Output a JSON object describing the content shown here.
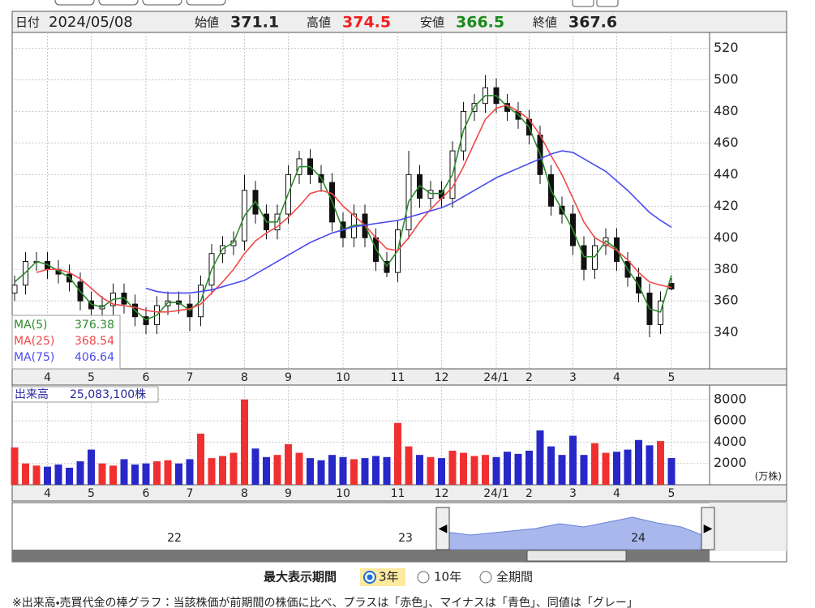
{
  "header": {
    "date_label": "日付",
    "date": "2024/05/08",
    "open_label": "始値",
    "open": 371.1,
    "high_label": "高値",
    "high": 374.5,
    "low_label": "安値",
    "low": 366.5,
    "close_label": "終値",
    "close": 367.6
  },
  "chart_data": [
    {
      "type": "candlestick",
      "categories": [
        null,
        null,
        null,
        "4",
        null,
        null,
        null,
        "5",
        null,
        null,
        null,
        null,
        "6",
        null,
        null,
        null,
        "7",
        null,
        null,
        null,
        null,
        "8",
        null,
        null,
        null,
        "9",
        null,
        null,
        null,
        null,
        "10",
        null,
        null,
        null,
        null,
        "11",
        null,
        null,
        null,
        "12",
        null,
        null,
        null,
        null,
        "24/1",
        null,
        null,
        "2",
        null,
        null,
        null,
        "3",
        null,
        null,
        null,
        "4",
        null,
        null,
        null,
        null,
        "5"
      ],
      "open": [
        365,
        370,
        385,
        385,
        380,
        377,
        372,
        360,
        355,
        357,
        365,
        358,
        350,
        345,
        357,
        360,
        358,
        350,
        370,
        390,
        395,
        398,
        430,
        415,
        405,
        415,
        440,
        450,
        440,
        435,
        410,
        400,
        415,
        400,
        385,
        378,
        405,
        440,
        425,
        430,
        425,
        455,
        480,
        485,
        495,
        485,
        480,
        475,
        465,
        440,
        420,
        415,
        395,
        380,
        395,
        400,
        385,
        375,
        365,
        345,
        371.1
      ],
      "high": [
        376,
        391,
        391,
        391,
        386,
        383,
        378,
        366,
        363,
        371,
        371,
        364,
        356,
        363,
        366,
        366,
        364,
        376,
        396,
        401,
        404,
        440,
        436,
        421,
        421,
        446,
        455,
        456,
        446,
        441,
        416,
        421,
        421,
        406,
        391,
        411,
        455,
        446,
        436,
        436,
        461,
        486,
        491,
        503,
        501,
        491,
        486,
        481,
        471,
        446,
        426,
        421,
        401,
        401,
        406,
        406,
        391,
        381,
        371,
        366,
        374.5
      ],
      "low": [
        360,
        364,
        379,
        374,
        371,
        366,
        354,
        349,
        349,
        351,
        352,
        344,
        339,
        339,
        351,
        352,
        341,
        344,
        364,
        384,
        389,
        392,
        409,
        399,
        399,
        409,
        434,
        434,
        429,
        404,
        394,
        394,
        394,
        379,
        375,
        372,
        399,
        419,
        419,
        419,
        419,
        449,
        474,
        479,
        479,
        474,
        469,
        459,
        434,
        414,
        409,
        389,
        373,
        374,
        389,
        379,
        369,
        359,
        337,
        339,
        366.5
      ],
      "close": [
        370,
        385,
        385,
        380,
        377,
        372,
        360,
        355,
        357,
        365,
        358,
        350,
        345,
        357,
        360,
        358,
        350,
        370,
        390,
        395,
        398,
        430,
        415,
        405,
        415,
        440,
        450,
        440,
        435,
        410,
        400,
        415,
        400,
        385,
        378,
        405,
        440,
        425,
        430,
        425,
        455,
        480,
        485,
        495,
        485,
        480,
        475,
        465,
        440,
        420,
        415,
        395,
        380,
        395,
        400,
        385,
        375,
        365,
        345,
        360,
        367.6
      ],
      "candle_color": "#111111",
      "series": [
        {
          "name": "MA(5)",
          "color": "#2e8b2e",
          "values": [
            372,
            378,
            385,
            383,
            379,
            375,
            366,
            358,
            356,
            361,
            362,
            354,
            348,
            351,
            359,
            359,
            354,
            360,
            380,
            393,
            397,
            414,
            423,
            410,
            410,
            428,
            445,
            445,
            438,
            423,
            405,
            408,
            408,
            393,
            382,
            392,
            423,
            433,
            428,
            428,
            440,
            468,
            483,
            490,
            490,
            483,
            478,
            470,
            453,
            430,
            418,
            405,
            388,
            388,
            398,
            393,
            380,
            370,
            355,
            353,
            376.38
          ]
        },
        {
          "name": "MA(25)",
          "color": "#f04848",
          "values": [
            null,
            null,
            378,
            380,
            380,
            378,
            374,
            368,
            362,
            358,
            357,
            356,
            354,
            353,
            353,
            354,
            355,
            358,
            365,
            372,
            380,
            390,
            398,
            403,
            407,
            413,
            420,
            428,
            430,
            428,
            420,
            414,
            408,
            400,
            393,
            392,
            400,
            410,
            418,
            425,
            432,
            445,
            460,
            475,
            482,
            484,
            480,
            475,
            465,
            452,
            440,
            425,
            410,
            400,
            396,
            392,
            386,
            378,
            372,
            370,
            368.54
          ]
        },
        {
          "name": "MA(75)",
          "color": "#4b4bf0",
          "values": [
            null,
            null,
            null,
            null,
            null,
            null,
            null,
            null,
            null,
            null,
            null,
            null,
            368,
            366,
            365,
            365,
            365,
            366,
            367,
            369,
            371,
            373,
            377,
            381,
            385,
            389,
            393,
            397,
            400,
            403,
            405,
            407,
            408,
            409,
            410,
            411,
            413,
            415,
            417,
            419,
            422,
            426,
            430,
            434,
            438,
            441,
            444,
            447,
            450,
            453,
            455,
            454,
            450,
            446,
            442,
            436,
            430,
            423,
            416,
            411,
            406.64
          ]
        }
      ],
      "ylim": [
        317,
        530
      ],
      "yticks": [
        340,
        360,
        380,
        400,
        420,
        440,
        460,
        480,
        500,
        520
      ],
      "grid": true
    },
    {
      "type": "bar",
      "label": "出来高",
      "total": "25,083,100株",
      "unit": "(万株)",
      "values": [
        3500,
        2000,
        1800,
        1700,
        1900,
        1600,
        2200,
        3300,
        2000,
        1800,
        2400,
        1900,
        2000,
        2200,
        2300,
        2000,
        2400,
        4800,
        2500,
        2700,
        3000,
        8000,
        3400,
        2600,
        2800,
        3800,
        3000,
        2500,
        2300,
        2800,
        2600,
        2400,
        2500,
        2700,
        2600,
        5800,
        3600,
        2800,
        2600,
        2500,
        3200,
        3000,
        2700,
        2800,
        2600,
        3100,
        2900,
        3200,
        5100,
        3600,
        2800,
        4600,
        2800,
        3900,
        3000,
        3100,
        3300,
        4200,
        3700,
        4100,
        2508.31
      ],
      "up_color": "#f03030",
      "down_color": "#2828c8",
      "ylim": [
        0,
        9200
      ],
      "yticks": [
        2000,
        4000,
        6000,
        8000
      ],
      "grid": true
    }
  ],
  "navigator": {
    "labels": [
      "22",
      "23",
      "24"
    ]
  },
  "controls": {
    "label": "最大表示期間",
    "options": [
      "3年",
      "10年",
      "全期間"
    ]
  },
  "footnote": "※出来高・売買代金の棒グラフ：当該株価が前期間の株価に比べ、プラスは「赤色」、マイナスは「青色」、同値は「グレー」"
}
